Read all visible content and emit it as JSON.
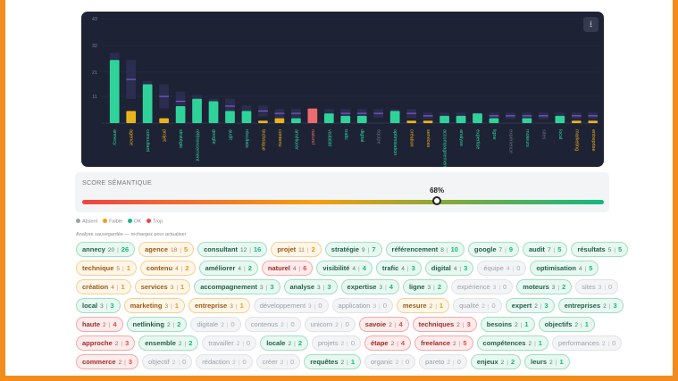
{
  "colors": {
    "ok": "#2fd39a",
    "faible": "#e8b31d",
    "trop": "#ee6b6b",
    "absent": "#6b7080",
    "target": "#7c5cd6",
    "band": "#2d2f52"
  },
  "chart_data": {
    "type": "bar",
    "ylim": [
      0,
      43
    ],
    "yticks": [
      11,
      21,
      32,
      43
    ],
    "legend": "none",
    "grid": true,
    "terms": [
      "annecy",
      "agence",
      "consultant",
      "projet",
      "stratégie",
      "référencement",
      "google",
      "audit",
      "résultats",
      "technique",
      "contenu",
      "améliorer",
      "naturel",
      "visibilité",
      "trafic",
      "digital",
      "équipe",
      "optimisation",
      "création",
      "services",
      "accompagnement",
      "analyse",
      "expertise",
      "ligne",
      "expérience",
      "moteurs",
      "sites",
      "local",
      "marketing",
      "entreprise"
    ]
  },
  "download_icon": "download-icon",
  "score": {
    "title": "SCORE SÉMANTIQUE",
    "value": 68,
    "label": "68%"
  },
  "legend": [
    {
      "label": "Absent",
      "color": "#9aa0a8"
    },
    {
      "label": "Faible",
      "color": "#f59e0b"
    },
    {
      "label": "OK",
      "color": "#10b981"
    },
    {
      "label": "Trop",
      "color": "#ef4444"
    }
  ],
  "note": "Analyse sauvegardée — rechargez pour actualiser",
  "tags": [
    [
      "annecy",
      20,
      26,
      "ok"
    ],
    [
      "agence",
      18,
      5,
      "faible"
    ],
    [
      "consultant",
      12,
      16,
      "ok"
    ],
    [
      "projet",
      11,
      2,
      "faible"
    ],
    [
      "stratégie",
      9,
      7,
      "ok"
    ],
    [
      "référencement",
      8,
      10,
      "ok"
    ],
    [
      "google",
      7,
      9,
      "ok"
    ],
    [
      "audit",
      7,
      5,
      "ok"
    ],
    [
      "résultats",
      5,
      5,
      "ok"
    ],
    [
      "technique",
      5,
      1,
      "faible"
    ],
    [
      "contenu",
      4,
      2,
      "faible"
    ],
    [
      "améliorer",
      4,
      2,
      "ok"
    ],
    [
      "naturel",
      4,
      6,
      "trop"
    ],
    [
      "visibilité",
      4,
      4,
      "ok"
    ],
    [
      "trafic",
      4,
      3,
      "ok"
    ],
    [
      "digital",
      4,
      3,
      "ok"
    ],
    [
      "équipe",
      4,
      0,
      "absent"
    ],
    [
      "optimisation",
      4,
      5,
      "ok"
    ],
    [
      "création",
      4,
      1,
      "faible"
    ],
    [
      "services",
      3,
      1,
      "faible"
    ],
    [
      "accompagnement",
      3,
      3,
      "ok"
    ],
    [
      "analyse",
      3,
      3,
      "ok"
    ],
    [
      "expertise",
      3,
      4,
      "ok"
    ],
    [
      "ligne",
      3,
      2,
      "ok"
    ],
    [
      "expérience",
      3,
      0,
      "absent"
    ],
    [
      "moteurs",
      3,
      2,
      "ok"
    ],
    [
      "sites",
      3,
      0,
      "absent"
    ],
    [
      "local",
      3,
      3,
      "ok"
    ],
    [
      "marketing",
      3,
      1,
      "faible"
    ],
    [
      "entreprise",
      3,
      1,
      "faible"
    ],
    [
      "développement",
      3,
      0,
      "absent"
    ],
    [
      "application",
      3,
      0,
      "absent"
    ],
    [
      "mesure",
      2,
      1,
      "faible"
    ],
    [
      "qualité",
      2,
      0,
      "absent"
    ],
    [
      "expert",
      2,
      3,
      "ok"
    ],
    [
      "entreprises",
      2,
      3,
      "ok"
    ],
    [
      "haute",
      2,
      4,
      "trop"
    ],
    [
      "netlinking",
      2,
      2,
      "ok"
    ],
    [
      "digitale",
      2,
      0,
      "absent"
    ],
    [
      "contenus",
      2,
      0,
      "absent"
    ],
    [
      "unicorn",
      2,
      0,
      "absent"
    ],
    [
      "savoie",
      2,
      4,
      "trop"
    ],
    [
      "techniques",
      2,
      3,
      "trop"
    ],
    [
      "besoins",
      2,
      1,
      "ok"
    ],
    [
      "objectifs",
      2,
      1,
      "ok"
    ],
    [
      "approche",
      2,
      3,
      "trop"
    ],
    [
      "ensemble",
      2,
      2,
      "ok"
    ],
    [
      "travailler",
      2,
      0,
      "absent"
    ],
    [
      "locale",
      2,
      2,
      "ok"
    ],
    [
      "projets",
      2,
      0,
      "absent"
    ],
    [
      "étape",
      2,
      4,
      "trop"
    ],
    [
      "freelance",
      2,
      5,
      "trop"
    ],
    [
      "compétences",
      2,
      1,
      "ok"
    ],
    [
      "performances",
      2,
      0,
      "absent"
    ],
    [
      "commerce",
      2,
      3,
      "trop"
    ],
    [
      "objectif",
      2,
      0,
      "absent"
    ],
    [
      "rédaction",
      2,
      0,
      "absent"
    ],
    [
      "créer",
      2,
      0,
      "absent"
    ],
    [
      "requêtes",
      2,
      1,
      "ok"
    ],
    [
      "organic",
      2,
      0,
      "absent"
    ],
    [
      "pareto",
      2,
      0,
      "absent"
    ],
    [
      "enjeux",
      2,
      2,
      "ok"
    ],
    [
      "leurs",
      2,
      1,
      "ok"
    ]
  ]
}
